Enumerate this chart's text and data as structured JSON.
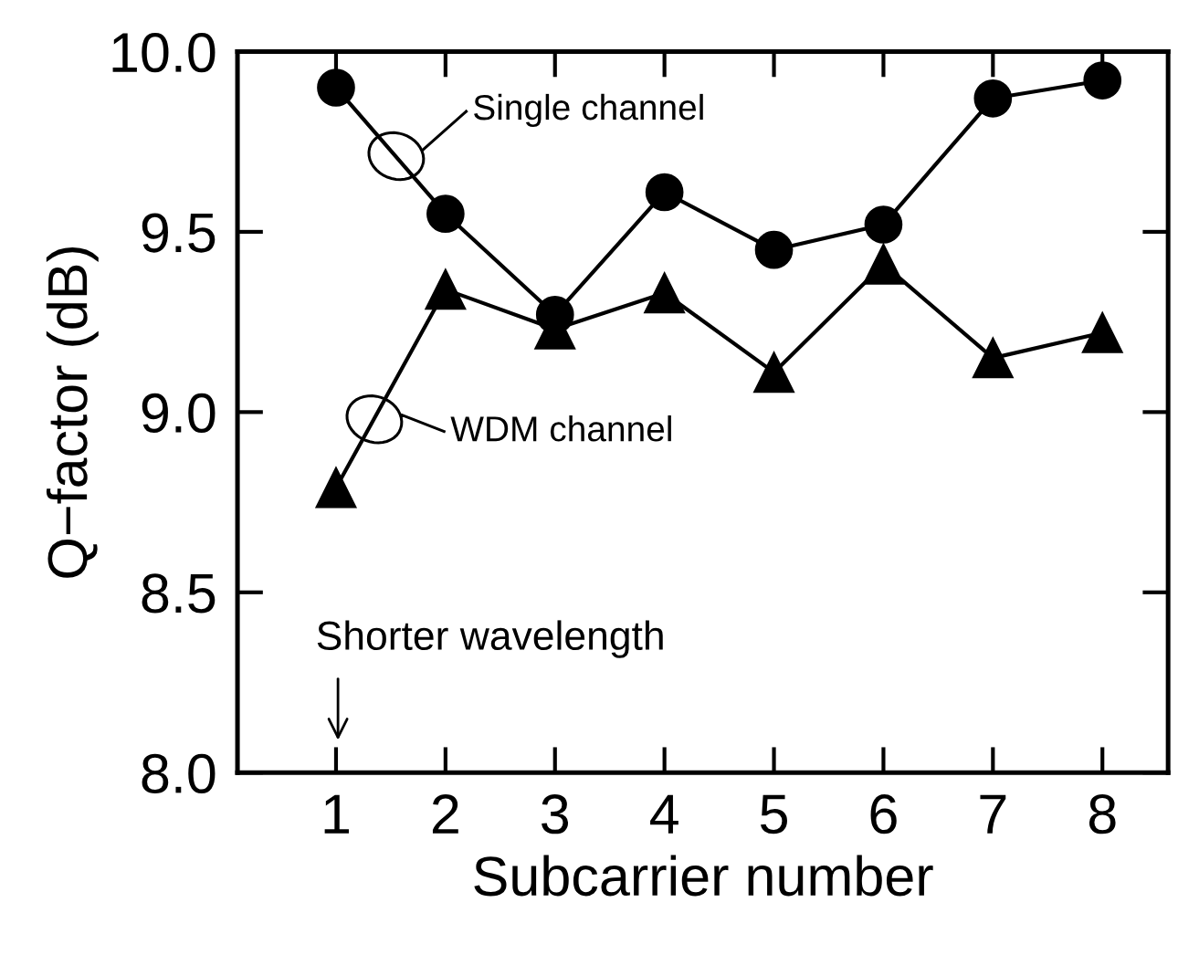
{
  "chart_data": {
    "type": "line",
    "xlabel": "Subcarrier number",
    "ylabel": "Q−factor (dB)",
    "x": [
      1,
      2,
      3,
      4,
      5,
      6,
      7,
      8
    ],
    "series": [
      {
        "color": "#000000",
        "marker": "circle",
        "values": [
          9.9,
          9.55,
          9.27,
          9.61,
          9.45,
          9.52,
          9.87,
          9.92
        ]
      },
      {
        "color": "#000000",
        "marker": "triangle",
        "values": [
          8.79,
          9.34,
          9.23,
          9.33,
          9.11,
          9.41,
          9.15,
          9.22
        ]
      }
    ],
    "xlim": [
      0.1,
      8.6
    ],
    "xticks": [
      1,
      2,
      3,
      4,
      5,
      6,
      7,
      8
    ],
    "ylim": [
      8.0,
      10.0
    ],
    "yticks": [
      {
        "value": 8.0,
        "label": "8.0"
      },
      {
        "value": 8.5,
        "label": "8.5"
      },
      {
        "value": 9.0,
        "label": "9.0"
      },
      {
        "value": 9.5,
        "label": "9.5"
      },
      {
        "value": 10.0,
        "label": "10.0"
      }
    ],
    "annotations": [
      {
        "text": "Single channel",
        "x": 1.55,
        "y": 9.71
      },
      {
        "text": "WDM channel",
        "x": 1.35,
        "y": 8.98
      },
      "Shorter wavelength"
    ],
    "grid": false,
    "legend": false
  }
}
